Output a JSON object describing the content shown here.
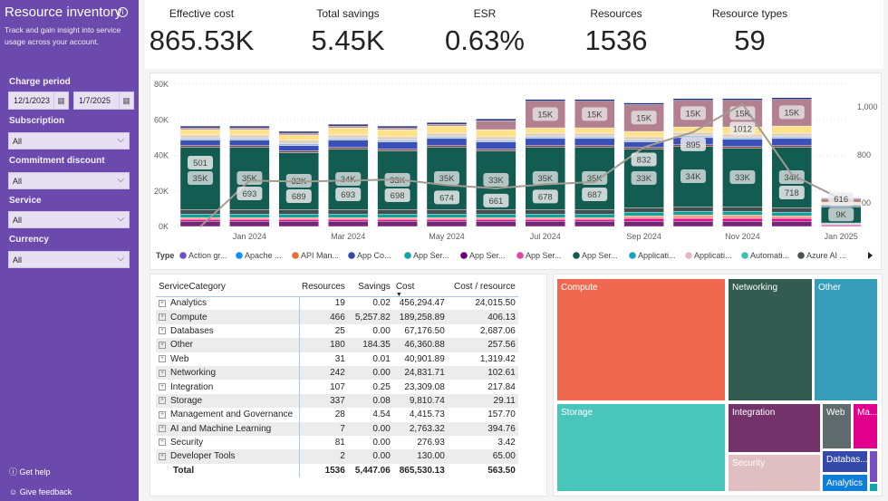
{
  "sidebar": {
    "title": "Resource inventory",
    "subtitle": "Track and gain insight into service usage across your account.",
    "charge_period": {
      "label": "Charge period",
      "start": "12/1/2023",
      "end": "1/7/2025"
    },
    "filters": [
      {
        "label": "Subscription",
        "value": "All"
      },
      {
        "label": "Commitment discount",
        "value": "All"
      },
      {
        "label": "Service",
        "value": "All"
      },
      {
        "label": "Currency",
        "value": "All"
      }
    ],
    "get_help": "Get help",
    "give_feedback": "Give feedback"
  },
  "kpis": [
    {
      "label": "Effective cost",
      "value": "865.53K"
    },
    {
      "label": "Total savings",
      "value": "5.45K"
    },
    {
      "label": "ESR",
      "value": "0.63%"
    },
    {
      "label": "Resources",
      "value": "1536"
    },
    {
      "label": "Resource types",
      "value": "59"
    }
  ],
  "chart_data": {
    "type": "bar",
    "stacked": true,
    "categories": [
      "Dec 2023",
      "Jan 2024",
      "Feb 2024",
      "Mar 2024",
      "Apr 2024",
      "May 2024",
      "Jun 2024",
      "Jul 2024",
      "Aug 2024",
      "Sep 2024",
      "Oct 2024",
      "Nov 2024",
      "Dec 2024",
      "Jan 2025"
    ],
    "x_tick_labels": [
      "Jan 2024",
      "Mar 2024",
      "May 2024",
      "Jul 2024",
      "Sep 2024",
      "Nov 2024",
      "Jan 2025"
    ],
    "y_ticks": [
      "0K",
      "20K",
      "40K",
      "60K",
      "80K"
    ],
    "ylim": [
      0,
      80000
    ],
    "y2_ticks": [
      "600",
      "800",
      "1,000"
    ],
    "y2lim": [
      500,
      1100
    ],
    "grid": true,
    "legend_title": "Type",
    "legend_position": "bottom",
    "legend": [
      {
        "name": "Action gr...",
        "color": "#744ec2"
      },
      {
        "name": "Apache ...",
        "color": "#118dff"
      },
      {
        "name": "API Man...",
        "color": "#e66c37"
      },
      {
        "name": "App Co...",
        "color": "#3049ad"
      },
      {
        "name": "App Ser...",
        "color": "#12a5a5"
      },
      {
        "name": "App Ser...",
        "color": "#6b007b"
      },
      {
        "name": "App Ser...",
        "color": "#e044a7"
      },
      {
        "name": "App Ser...",
        "color": "#125c52"
      },
      {
        "name": "Applicati...",
        "color": "#1aa0c6"
      },
      {
        "name": "Applicati...",
        "color": "#e5b9c2"
      },
      {
        "name": "Automati...",
        "color": "#3ac2b7"
      },
      {
        "name": "Azure AI ...",
        "color": "#4a5252"
      }
    ],
    "series": [
      {
        "color": "#742774",
        "values": [
          3,
          3,
          3,
          3,
          3,
          3,
          3,
          3,
          3,
          3,
          3,
          3,
          3,
          0.5
        ]
      },
      {
        "color": "#e3008c",
        "values": [
          1,
          1,
          1,
          1,
          1,
          1,
          1,
          1,
          1,
          1.5,
          1.5,
          1.5,
          1.5,
          0.5
        ]
      },
      {
        "color": "#f2a48b",
        "values": [
          1,
          1,
          1,
          1,
          1,
          1,
          1,
          1,
          1,
          1.5,
          2,
          2,
          1.5,
          0.3
        ]
      },
      {
        "color": "#12a09a",
        "values": [
          2,
          2,
          2,
          2,
          2,
          2,
          2,
          2,
          2,
          2,
          2,
          2,
          2,
          0.3
        ]
      },
      {
        "color": "#434e4f",
        "values": [
          2.5,
          2.5,
          2.5,
          2.5,
          2.5,
          2.5,
          2.5,
          2.5,
          2.5,
          2.5,
          2.5,
          2.5,
          2.5,
          0.4
        ]
      },
      {
        "color": "#125c52",
        "values": [
          35000,
          35000,
          32000,
          34000,
          33000,
          35000,
          33000,
          35000,
          35000,
          33000,
          34000,
          33000,
          34000,
          9000
        ],
        "labeled": true
      },
      {
        "color": "#7f4a3b",
        "values": [
          1,
          1,
          1,
          1,
          1,
          1,
          1,
          1,
          1,
          1,
          1,
          1,
          1,
          0.3
        ]
      },
      {
        "color": "#3a4fb8",
        "values": [
          3,
          3,
          3,
          4,
          4,
          4,
          4,
          4,
          4,
          3,
          4,
          4,
          4,
          0.6
        ]
      },
      {
        "color": "#8fbde6",
        "values": [
          1,
          1,
          1,
          1,
          1,
          1,
          1,
          1,
          1,
          1,
          1,
          1,
          1,
          0.5
        ]
      },
      {
        "color": "#e2cfc0",
        "values": [
          2,
          2,
          2,
          2,
          2,
          2,
          2,
          2,
          2,
          2,
          2,
          2,
          2,
          0.5
        ]
      },
      {
        "color": "#fde28a",
        "values": [
          3,
          3,
          3,
          4,
          4,
          4,
          4,
          3,
          3,
          3,
          3,
          4,
          4,
          0.8
        ]
      },
      {
        "color": "#b3808f",
        "values": [
          1,
          1,
          1,
          1,
          1,
          1,
          5,
          15000,
          15000,
          15000,
          15000,
          15000,
          15000,
          2
        ],
        "labeled": true
      },
      {
        "color": "#1f2f7a",
        "values": [
          1,
          1,
          1,
          1,
          1,
          1,
          1,
          1,
          1,
          1,
          1,
          1,
          1,
          0.3
        ]
      }
    ],
    "series_units_note_k": "values below 1000 are in thousands",
    "line": {
      "axis": "right",
      "color": "#a39a92",
      "values": [
        501,
        693,
        689,
        693,
        698,
        674,
        661,
        678,
        687,
        832,
        895,
        1012,
        718,
        616
      ]
    }
  },
  "table": {
    "headers": [
      "ServiceCategory",
      "Resources",
      "Savings",
      "Cost",
      "Cost / resource"
    ],
    "rows": [
      [
        "Analytics",
        "19",
        "0.02",
        "456,294.47",
        "24,015.50"
      ],
      [
        "Compute",
        "466",
        "5,257.82",
        "189,258.89",
        "406.13"
      ],
      [
        "Databases",
        "25",
        "0.00",
        "67,176.50",
        "2,687.06"
      ],
      [
        "Other",
        "180",
        "184.35",
        "46,360.88",
        "257.56"
      ],
      [
        "Web",
        "31",
        "0.01",
        "40,901.89",
        "1,319.42"
      ],
      [
        "Networking",
        "242",
        "0.00",
        "24,831.71",
        "102.61"
      ],
      [
        "Integration",
        "107",
        "0.25",
        "23,309.08",
        "217.84"
      ],
      [
        "Storage",
        "337",
        "0.08",
        "9,810.74",
        "29.11"
      ],
      [
        "Management and Governance",
        "28",
        "4.54",
        "4,415.73",
        "157.70"
      ],
      [
        "AI and Machine Learning",
        "7",
        "0.00",
        "2,763.32",
        "394.76"
      ],
      [
        "Security",
        "81",
        "0.00",
        "276.93",
        "3.42"
      ],
      [
        "Developer Tools",
        "2",
        "0.00",
        "130.00",
        "65.00"
      ]
    ],
    "total": [
      "Total",
      "1536",
      "5,447.06",
      "865,530.13",
      "563.50"
    ],
    "sorted_column": "Cost"
  },
  "treemap": [
    {
      "label": "Compute",
      "color": "#ee6950"
    },
    {
      "label": "Networking",
      "color": "#335b50"
    },
    {
      "label": "Other",
      "color": "#359cba"
    },
    {
      "label": "Storage",
      "color": "#4ac5bb"
    },
    {
      "label": "Integration",
      "color": "#73336a"
    },
    {
      "label": "Security",
      "color": "#dfbfc2"
    },
    {
      "label": "Web",
      "color": "#5f6b6d"
    },
    {
      "label": "Ma...",
      "color": "#e0008c"
    },
    {
      "label": "Databas...",
      "color": "#3549ab"
    },
    {
      "label": "Analytics",
      "color": "#0f7ed9"
    },
    {
      "label": "",
      "color": "#744ec2"
    },
    {
      "label": "",
      "color": "#12a5a5"
    }
  ]
}
